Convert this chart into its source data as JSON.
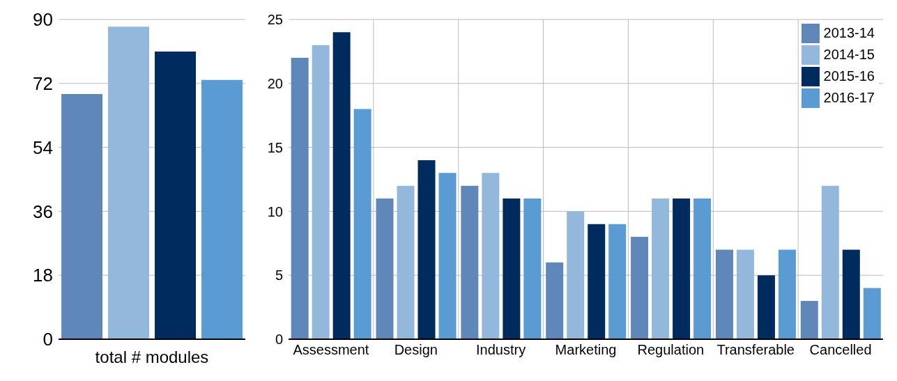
{
  "chart_data": [
    {
      "type": "bar",
      "categories": [
        null,
        null,
        null,
        null
      ],
      "values": [
        69,
        88,
        81,
        73
      ],
      "colors": [
        "#5f87b9",
        "#94b8dc",
        "#002b5f",
        "#5a9bd3"
      ],
      "xlabel": "total # modules",
      "ylim": [
        0,
        90
      ],
      "yticks": [
        0,
        18,
        36,
        54,
        72,
        90
      ],
      "grid": "y"
    },
    {
      "type": "bar",
      "categories": [
        "Assessment",
        "Design",
        "Industry",
        "Marketing",
        "Regulation",
        "Transferable",
        "Cancelled"
      ],
      "series": [
        {
          "name": "2013-14",
          "color": "#5f87b9",
          "values": [
            22,
            11,
            12,
            6,
            8,
            7,
            3
          ]
        },
        {
          "name": "2014-15",
          "color": "#94b8dc",
          "values": [
            23,
            12,
            13,
            10,
            11,
            7,
            12
          ]
        },
        {
          "name": "2015-16",
          "color": "#002b5f",
          "values": [
            24,
            14,
            11,
            9,
            11,
            5,
            7
          ]
        },
        {
          "name": "2016-17",
          "color": "#5a9bd3",
          "values": [
            18,
            13,
            11,
            9,
            11,
            7,
            4
          ]
        }
      ],
      "ylim": [
        0,
        25
      ],
      "yticks": [
        0,
        5,
        10,
        15,
        20,
        25
      ],
      "grid": true,
      "legend": "top right"
    }
  ]
}
